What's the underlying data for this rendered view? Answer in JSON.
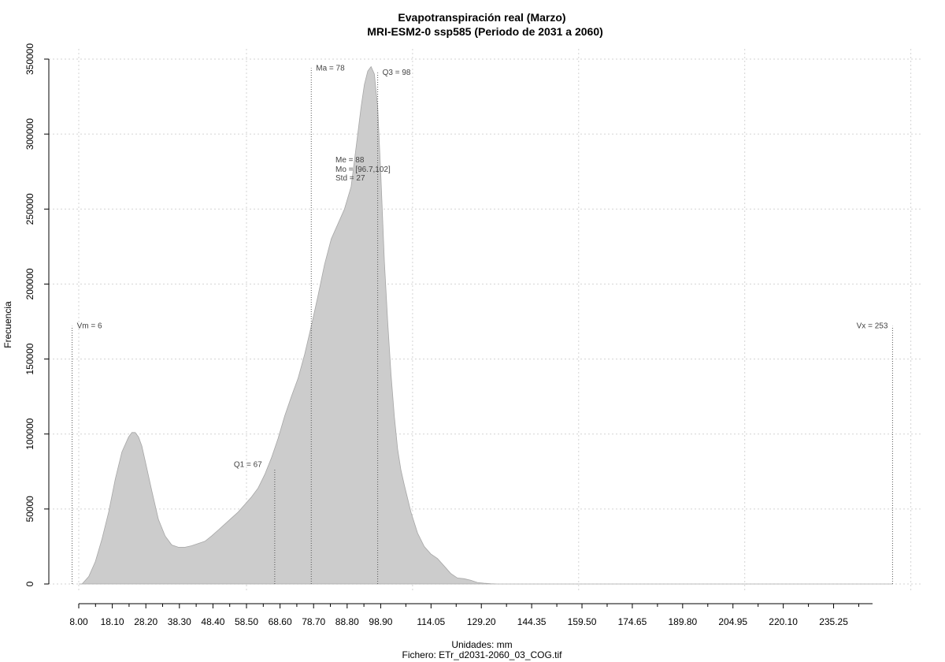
{
  "chart_data": {
    "type": "area",
    "title": "Evapotranspiración real (Marzo)",
    "subtitle": "MRI-ESM2-0 ssp585 (Periodo de 2031 a 2060)",
    "xlabel": "Unidades: mm",
    "ylabel": "Frecuencia",
    "footer": "Fichero: ETr_d2031-2060_03_COG.tif",
    "xlim": [
      1,
      256
    ],
    "ylim": [
      0,
      350000
    ],
    "grid": true,
    "y_ticks": [
      0,
      50000,
      100000,
      150000,
      200000,
      250000,
      300000,
      350000
    ],
    "y_tick_labels": [
      "0",
      "50000",
      "100000",
      "150000",
      "200000",
      "250000",
      "300000",
      "350000"
    ],
    "x_ticks": [
      8,
      18.1,
      28.2,
      38.3,
      48.4,
      58.5,
      68.6,
      78.7,
      88.8,
      98.9,
      114.05,
      129.2,
      144.35,
      159.5,
      174.65,
      189.8,
      204.95,
      220.1,
      235.25
    ],
    "x_tick_labels": [
      "8.00",
      "18.10",
      "28.20",
      "38.30",
      "48.40",
      "58.50",
      "68.60",
      "78.70",
      "88.80",
      "98.90",
      "114.05",
      "129.20",
      "144.35",
      "159.50",
      "174.65",
      "189.80",
      "204.95",
      "220.10",
      "235.25"
    ],
    "x_minor_ticks": [
      13.05,
      23.15,
      33.25,
      43.35,
      53.45,
      63.55,
      73.65,
      83.75,
      93.85,
      106.475,
      121.625,
      136.775,
      151.925,
      167.075,
      182.225,
      197.375,
      212.525,
      227.675,
      242.825
    ],
    "x_grid": [
      8,
      58.5,
      108.5,
      158.5,
      208.5,
      258.5
    ],
    "density": {
      "x": [
        8,
        9,
        11,
        13,
        15,
        17,
        19,
        21,
        23,
        24,
        25,
        26,
        27,
        28,
        30,
        32,
        34,
        36,
        38,
        40,
        42,
        44,
        46,
        48,
        50,
        52,
        54,
        56,
        58,
        60,
        62,
        64,
        66,
        68,
        70,
        72,
        74,
        76,
        78,
        80,
        82,
        84,
        86,
        88,
        90,
        92,
        93,
        94,
        95,
        96,
        97,
        98,
        99,
        100,
        101,
        102,
        103,
        104,
        105,
        106,
        107,
        108,
        110,
        112,
        114,
        116,
        118,
        120,
        122,
        124,
        126,
        128,
        130,
        132,
        134,
        140,
        150,
        200,
        253
      ],
      "y": [
        0,
        0,
        5000,
        15000,
        30000,
        48000,
        70000,
        88000,
        98000,
        101000,
        101000,
        98000,
        92000,
        82000,
        62000,
        43000,
        32000,
        26000,
        24500,
        24500,
        25500,
        27000,
        28500,
        32000,
        36000,
        40000,
        44000,
        48000,
        53000,
        58000,
        64000,
        73000,
        84000,
        97000,
        112000,
        125000,
        137000,
        153000,
        172000,
        192000,
        213000,
        230000,
        240000,
        250000,
        265000,
        300000,
        318000,
        333000,
        342000,
        345000,
        340000,
        318000,
        270000,
        215000,
        175000,
        140000,
        112000,
        90000,
        76000,
        66000,
        57000,
        48000,
        34000,
        25000,
        20000,
        17000,
        12000,
        7000,
        4000,
        3500,
        2500,
        1000,
        500,
        200,
        0,
        0,
        0,
        0,
        0
      ]
    },
    "markers": [
      {
        "x": 6,
        "y_top": 172000,
        "label": "Vm = 6"
      },
      {
        "x": 67,
        "y_top": 77000,
        "label": "Q1 = 67"
      },
      {
        "x": 78,
        "y_top": 344000,
        "label": "Ma = 78"
      },
      {
        "x": 98,
        "y_top": 341000,
        "label": "Q3 = 98"
      },
      {
        "x": 253,
        "y_top": 172000,
        "label": "Vx = 253"
      }
    ],
    "stats_labels": [
      "Me = 88",
      "Mo = [96.7,102]",
      "Std = 27"
    ]
  }
}
